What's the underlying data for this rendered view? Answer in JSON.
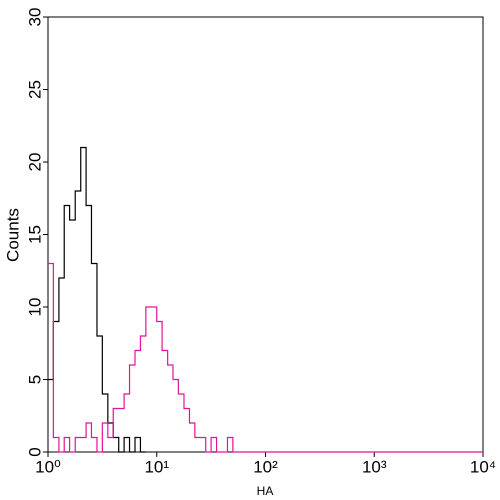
{
  "chart_data": {
    "type": "line",
    "xlabel": "HA",
    "ylabel": "Counts",
    "xscale": "log",
    "xlim": [
      1,
      10000
    ],
    "ylim": [
      0,
      30
    ],
    "xticks": [
      {
        "value": 1,
        "label": "10⁰"
      },
      {
        "value": 10,
        "label": "10¹"
      },
      {
        "value": 100,
        "label": "10²"
      },
      {
        "value": 1000,
        "label": "10³"
      },
      {
        "value": 10000,
        "label": "10⁴"
      }
    ],
    "yticks": [
      0,
      5,
      10,
      15,
      20,
      25,
      30
    ],
    "series": [
      {
        "color": "#000000",
        "x": [
          1,
          1.12,
          1.26,
          1.41,
          1.58,
          1.78,
          2,
          2.24,
          2.51,
          2.82,
          3.16,
          3.55,
          3.98,
          4.47,
          5.01,
          5.62,
          6.31,
          7.08,
          7.94
        ],
        "values": [
          5,
          9,
          12,
          17,
          16,
          18,
          21,
          17,
          13,
          8,
          4,
          2,
          1,
          0,
          1,
          0,
          1,
          0,
          0
        ]
      },
      {
        "color": "#e0139b",
        "x": [
          1,
          1.12,
          1.26,
          1.41,
          1.58,
          1.78,
          2,
          2.24,
          2.51,
          2.82,
          3.16,
          3.55,
          3.98,
          4.47,
          5.01,
          5.62,
          6.31,
          7.08,
          7.94,
          8.91,
          10,
          11.2,
          12.6,
          14.1,
          15.8,
          17.8,
          20,
          22.4,
          25.1,
          28.2,
          31.6,
          35.5,
          39.8,
          44.7,
          50.1,
          10000
        ],
        "values": [
          13,
          1,
          0,
          1,
          0,
          1,
          1,
          2,
          1,
          0,
          2,
          1,
          3,
          3,
          4,
          6,
          7,
          8,
          10,
          10,
          9,
          7,
          6,
          5,
          4,
          3,
          2,
          1,
          1,
          0,
          1,
          0,
          0,
          1,
          0,
          0
        ]
      }
    ]
  }
}
